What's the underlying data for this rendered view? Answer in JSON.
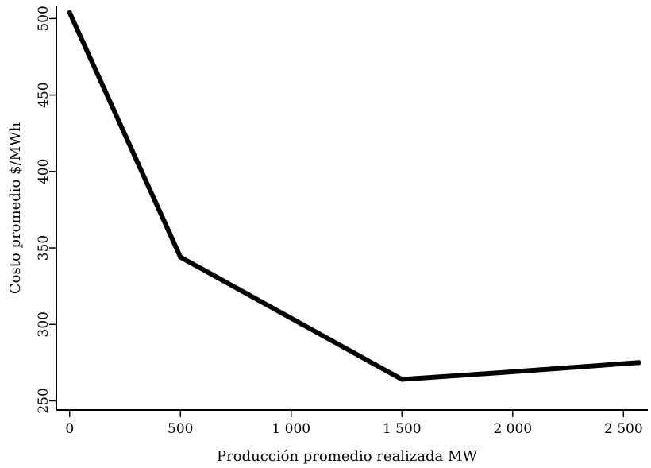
{
  "chart_data": {
    "type": "line",
    "title": "",
    "xlabel": "Producción promedio realizada MW",
    "ylabel": "Costo promedio $/MWh",
    "xlim": [
      -60,
      2610
    ],
    "ylim": [
      244,
      508
    ],
    "x_ticks": [
      0,
      500,
      1000,
      1500,
      2000,
      2500
    ],
    "x_tick_labels": [
      "0",
      "500",
      "1 000",
      "1 500",
      "2 000",
      "2 500"
    ],
    "y_ticks": [
      250,
      300,
      350,
      400,
      450,
      500
    ],
    "y_tick_labels": [
      "250",
      "300",
      "350",
      "400",
      "450",
      "500"
    ],
    "grid": false,
    "series": [
      {
        "name": "Costo promedio",
        "color": "#000000",
        "points": [
          {
            "x": 0,
            "y": 504
          },
          {
            "x": 500,
            "y": 344
          },
          {
            "x": 1500,
            "y": 264
          },
          {
            "x": 2000,
            "y": 269
          },
          {
            "x": 2570,
            "y": 275
          }
        ]
      }
    ]
  }
}
